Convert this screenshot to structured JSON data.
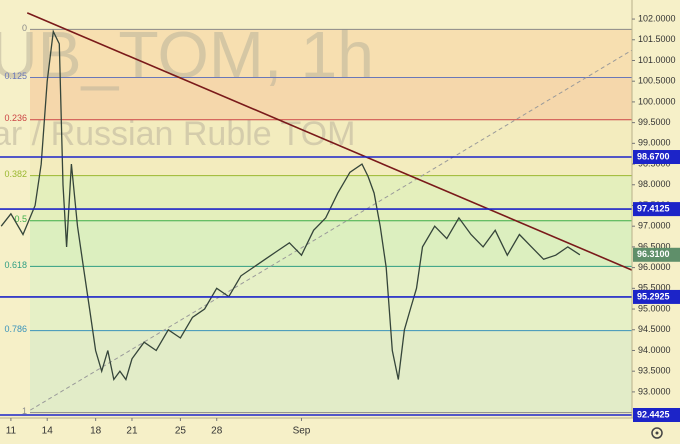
{
  "chart_data": {
    "type": "line",
    "watermark": [
      "UB_TOM, 1h",
      "ar / Russian Ruble TOM"
    ],
    "x": [
      10.2,
      11,
      12,
      13,
      13.5,
      14,
      14.5,
      15,
      15.3,
      15.6,
      16,
      16.5,
      17,
      17.5,
      18,
      18.5,
      19,
      19.5,
      20,
      20.5,
      21,
      22,
      23,
      24,
      25,
      26,
      27,
      28,
      29,
      30,
      31,
      32,
      33,
      34,
      35,
      36,
      37,
      38,
      39,
      40,
      40.5,
      41,
      41.5,
      42,
      42.5,
      43,
      43.5,
      44,
      44.5,
      45,
      46,
      47,
      48,
      49,
      50,
      51,
      52,
      53,
      54,
      55,
      56,
      57,
      58
    ],
    "series": [
      {
        "color": "#35453a",
        "values": [
          97.0,
          97.3,
          96.8,
          97.5,
          98.5,
          100.5,
          101.7,
          101.4,
          98.0,
          96.5,
          98.5,
          97.0,
          96.0,
          95.0,
          94.0,
          93.5,
          94.0,
          93.3,
          93.5,
          93.3,
          93.8,
          94.2,
          94.0,
          94.5,
          94.3,
          94.8,
          95.0,
          95.5,
          95.3,
          95.8,
          96.0,
          96.2,
          96.4,
          96.6,
          96.3,
          96.9,
          97.2,
          97.8,
          98.3,
          98.5,
          98.2,
          97.8,
          97.0,
          96.0,
          94.0,
          93.3,
          94.5,
          95.0,
          95.5,
          96.5,
          97.0,
          96.7,
          97.2,
          96.8,
          96.5,
          96.9,
          96.3,
          96.8,
          96.5,
          96.2,
          96.3,
          96.5,
          96.31
        ]
      }
    ],
    "xlim": [
      10.1,
      62.3
    ],
    "xticks": [
      14,
      21,
      28,
      {
        "value": 35,
        "label": "Sep"
      },
      11,
      18,
      25
    ],
    "ylim": [
      92.37,
      102.46
    ],
    "yticks": [
      {
        "value": 93,
        "label": "93.0000"
      },
      {
        "value": 93.5,
        "label": "93.5000"
      },
      {
        "value": 94,
        "label": "94.0000"
      },
      {
        "value": 94.5,
        "label": "94.5000"
      },
      {
        "value": 95,
        "label": "95.0000"
      },
      {
        "value": 95.5,
        "label": "95.5000"
      },
      {
        "value": 96,
        "label": "96.0000"
      },
      {
        "value": 96.5,
        "label": "96.5000"
      },
      {
        "value": 97,
        "label": "97.0000"
      },
      {
        "value": 97.5,
        "label": "97.5000"
      },
      {
        "value": 98,
        "label": "98.0000"
      },
      {
        "value": 98.5,
        "label": "98.5000"
      },
      {
        "value": 99,
        "label": "99.0000"
      },
      {
        "value": 99.5,
        "label": "99.5000"
      },
      {
        "value": 100,
        "label": "100.0000"
      },
      {
        "value": 100.5,
        "label": "100.5000"
      },
      {
        "value": 101,
        "label": "101.0000"
      },
      {
        "value": 101.5,
        "label": "101.5000"
      },
      {
        "value": 102,
        "label": "102.0000"
      }
    ],
    "fib_levels": [
      {
        "ratio": 0,
        "value": 101.75,
        "color": "#8a8a8a",
        "band_color": "#f7dfb0"
      },
      {
        "ratio": 0.125,
        "value": 100.59,
        "color": "#6a78b8",
        "band_color": "#f5d7ab"
      },
      {
        "ratio": 0.236,
        "value": 99.57,
        "color": "#cc4444",
        "band_color": "#f3ecbe"
      },
      {
        "ratio": 0.382,
        "value": 98.22,
        "color": "#9ab830",
        "band_color": "#e4efbc"
      },
      {
        "ratio": 0.5,
        "value": 97.13,
        "color": "#3fae4a",
        "band_color": "#dcefbf"
      },
      {
        "ratio": 0.618,
        "value": 96.03,
        "color": "#2f9e82",
        "band_color": "#e6f0c6"
      },
      {
        "ratio": 0.786,
        "value": 94.48,
        "color": "#3a93bb",
        "band_color": "#e2ecc8"
      },
      {
        "ratio": 1,
        "value": 92.5,
        "color": "#8a8a8a"
      }
    ],
    "levels": [
      {
        "value": 98.67,
        "label": "98.6700"
      },
      {
        "value": 97.4125,
        "label": "97.4125"
      },
      {
        "value": 95.2925,
        "label": "95.2925"
      },
      {
        "value": 92.4425,
        "label": "92.4425"
      }
    ],
    "level_color": "#1c24c8",
    "last_price": {
      "value": 96.31,
      "label": "96.3100",
      "color": "#5f8f6a"
    },
    "trendline": {
      "x": [
        12.35,
        62.3
      ],
      "values": [
        102.15,
        95.94
      ],
      "color": "#7a1a1a"
    },
    "channel_line": {
      "x": [
        12.6,
        62.3
      ],
      "values": [
        92.56,
        101.25
      ],
      "color": "#9a9a9a"
    }
  }
}
